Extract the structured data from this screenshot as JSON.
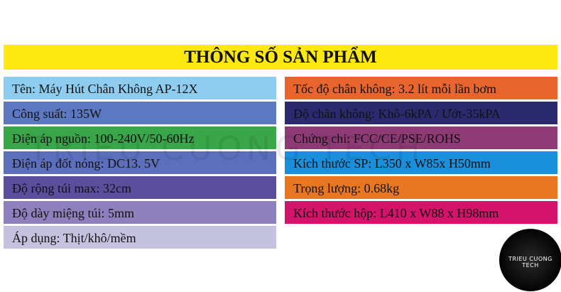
{
  "header": {
    "title": "THÔNG SỐ SẢN PHẨM"
  },
  "left_rows": [
    "Tên: Máy Hút Chân Không AP-12X",
    "Công suất: 135W",
    "Điện áp nguồn: 100-240V/50-60Hz",
    "Điện áp đốt nóng: DC13. 5V",
    "Độ rộng túi max: 32cm",
    "Độ dày miệng túi: 5mm",
    "Áp dụng: Thịt/khô/mềm"
  ],
  "right_rows": [
    "Tốc độ chân không: 3.2 lít mỗi lần bơm",
    "Độ chân không: Khô-6kPA / Ướt-35kPA",
    "Chứng chỉ: FCC/CE/PSE/ROHS",
    "Kích thước SP: L350 x W85x H50mm",
    "Trọng lượng: 0.68kg",
    "Kích thước hộp: L410 x W88 x H98mm"
  ],
  "logo": {
    "text": "TRIEU CUONG TECH"
  }
}
